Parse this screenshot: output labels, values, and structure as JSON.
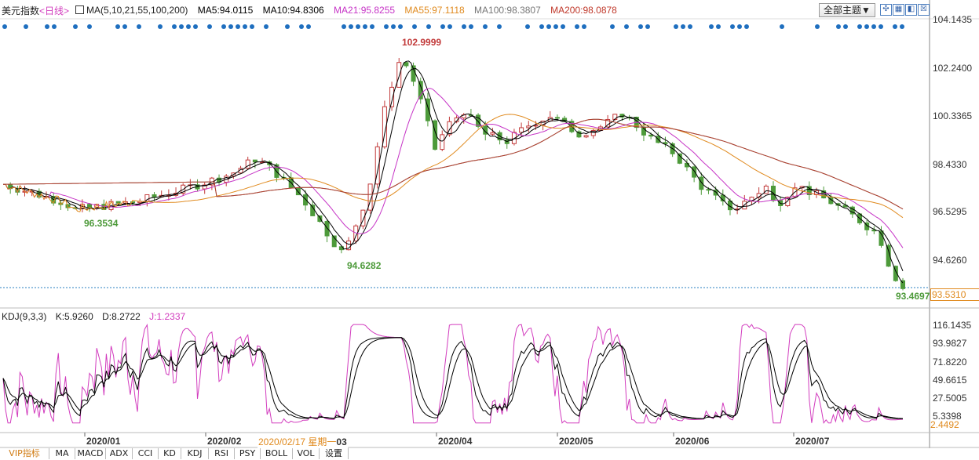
{
  "header": {
    "title": "美元指数",
    "period": "<日线>",
    "ma_params": "MA(5,10,21,55,100,200)",
    "ma5": "MA5:94.0115",
    "ma10": "MA10:94.8306",
    "ma21": "MA21:95.8255",
    "ma55": "MA55:97.1118",
    "ma100": "MA100:98.3807",
    "ma200": "MA200:98.0878",
    "theme_button": "全部主题▼"
  },
  "toolbar_icons": [
    "expand-icon",
    "grid-icon",
    "chart-icon",
    "close-icon"
  ],
  "price_axis": [
    "104.1435",
    "102.2400",
    "100.3365",
    "98.4330",
    "96.5295",
    "94.6260"
  ],
  "price_markers": {
    "high": "102.9999",
    "low1": "96.3534",
    "low2": "94.6282",
    "last": "93.4697",
    "current": "93.5310"
  },
  "kdj": {
    "params": "KDJ(9,3,3)",
    "k": "K:5.9260",
    "d": "D:8.2722",
    "j": "J:1.2337",
    "axis": [
      "116.1435",
      "93.9827",
      "71.8220",
      "49.6615",
      "27.5005",
      "5.3398"
    ],
    "current": "2.4492"
  },
  "dates": [
    "2020/01",
    "2020/02",
    "2020/04",
    "2020/05",
    "2020/06",
    "2020/07"
  ],
  "cursor_date": "2020/02/17 星期一",
  "cursor_suffix": "03",
  "tabs": [
    "VIP指标",
    "MA",
    "MACD",
    "ADX",
    "CCI",
    "KD",
    "KDJ",
    "RSI",
    "PSY",
    "BOLL",
    "VOL",
    "设置"
  ],
  "colors": {
    "up": "#c23a3a",
    "down": "#4d9a3a",
    "ma5": "#000000",
    "ma10": "#000000",
    "ma21": "#c634c6",
    "ma55": "#e08a1e",
    "ma100": "#8a7a6a",
    "ma200": "#b04030",
    "kdj_j": "#d23cbe",
    "dots": "#1f6fbf"
  }
}
